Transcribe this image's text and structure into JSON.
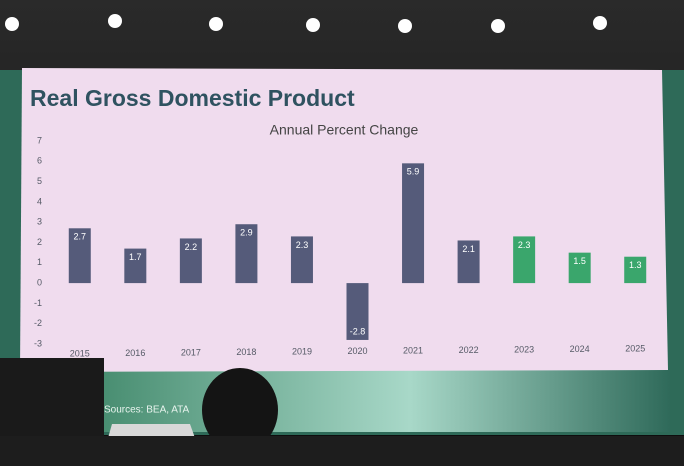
{
  "chart_data": {
    "type": "bar",
    "title": "Real Gross Domestic Product",
    "subtitle": "Annual Percent Change",
    "source": "Sources: BEA, ATA",
    "categories": [
      "2015",
      "2016",
      "2017",
      "2018",
      "2019",
      "2020",
      "2021",
      "2022",
      "2023",
      "2024",
      "2025"
    ],
    "values": [
      2.7,
      1.7,
      2.2,
      2.9,
      2.3,
      -2.8,
      5.9,
      2.1,
      2.3,
      1.5,
      1.3
    ],
    "colors": [
      "#555b7a",
      "#555b7a",
      "#555b7a",
      "#555b7a",
      "#555b7a",
      "#555b7a",
      "#555b7a",
      "#555b7a",
      "#3aa66c",
      "#3aa66c",
      "#3aa66c"
    ],
    "ylim": [
      -3,
      7
    ],
    "yticks": [
      -3,
      -2,
      -1,
      0,
      1,
      2,
      3,
      4,
      5,
      6,
      7
    ],
    "grid": false
  }
}
